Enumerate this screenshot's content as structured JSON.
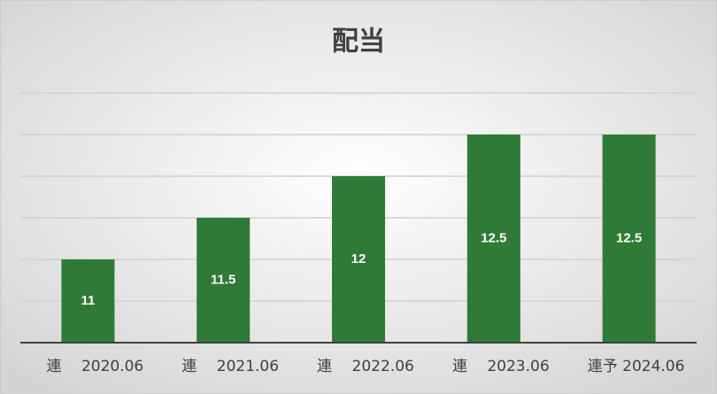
{
  "chart_data": {
    "type": "bar",
    "title": "配当",
    "categories": [
      "連　 2020.06",
      "連　 2021.06",
      "連　 2022.06",
      "連　 2023.06",
      "連予 2024.06"
    ],
    "values": [
      11,
      11.5,
      12,
      12.5,
      12.5
    ],
    "color": "#307a38",
    "ylim": [
      10,
      13
    ],
    "yticks": [
      10,
      10.5,
      11,
      11.5,
      12,
      12.5,
      13
    ],
    "grid": true
  }
}
